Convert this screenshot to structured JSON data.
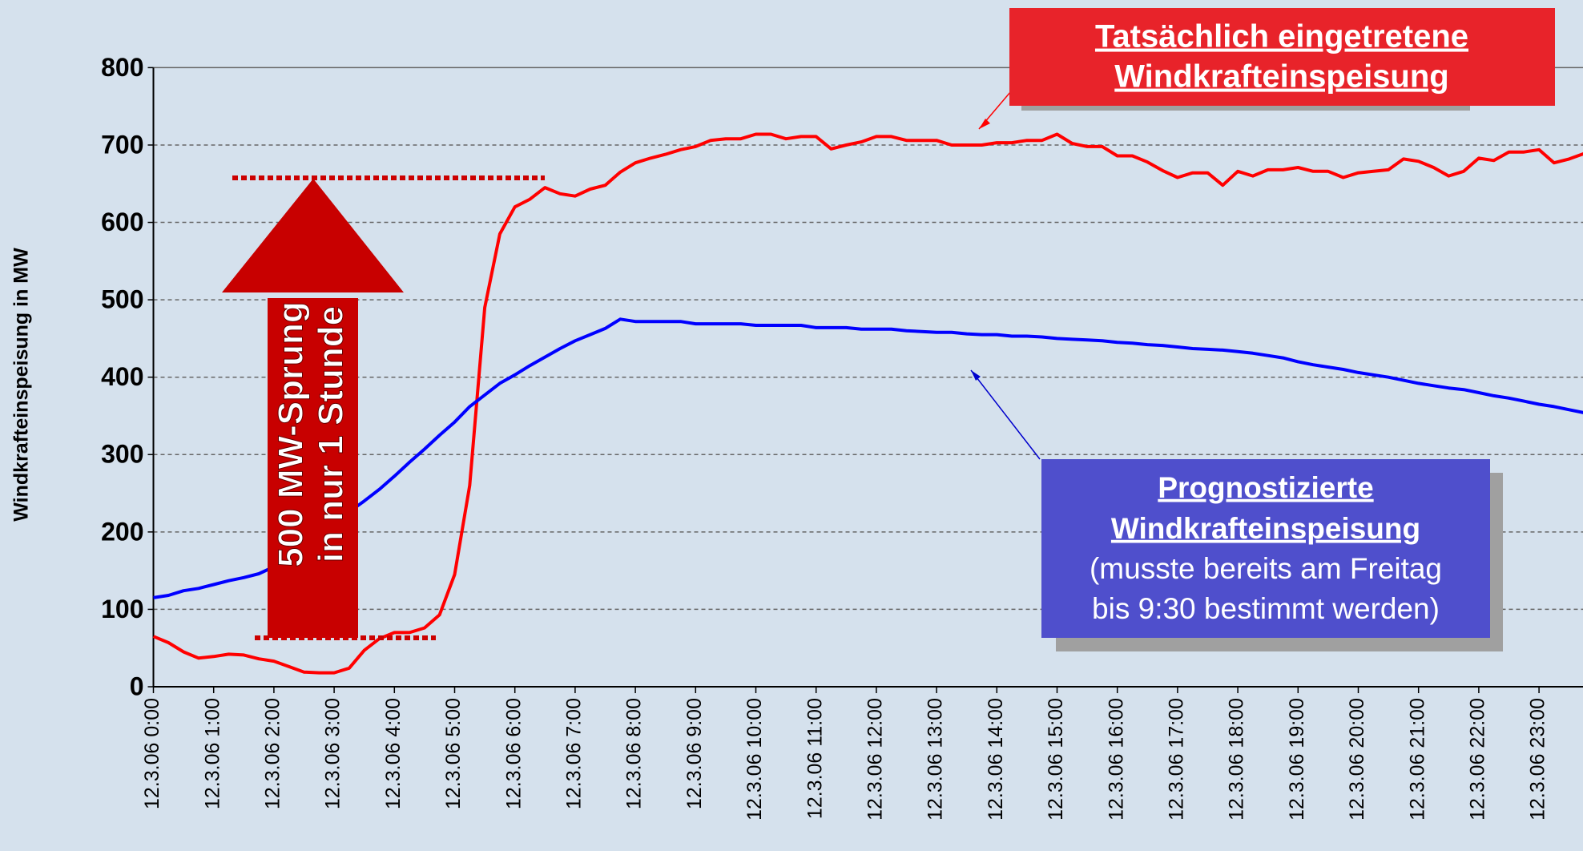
{
  "chart_data": {
    "type": "line",
    "ylabel": "Windkrafteinspeisung in MW",
    "categories": [
      "12.3.06 0:00",
      null,
      null,
      null,
      "12.3.06 1:00",
      null,
      null,
      null,
      "12.3.06 2:00",
      null,
      null,
      null,
      "12.3.06 3:00",
      null,
      null,
      null,
      "12.3.06 4:00",
      null,
      null,
      null,
      "12.3.06 5:00",
      null,
      null,
      null,
      "12.3.06 6:00",
      null,
      null,
      null,
      "12.3.06 7:00",
      null,
      null,
      null,
      "12.3.06 8:00",
      null,
      null,
      null,
      "12.3.06 9:00",
      null,
      null,
      null,
      "12.3.06 10:00",
      null,
      null,
      null,
      "12.3.06 11:00",
      null,
      null,
      null,
      "12.3.06 12:00",
      null,
      null,
      null,
      "12.3.06 13:00",
      null,
      null,
      null,
      "12.3.06 14:00",
      null,
      null,
      null,
      "12.3.06 15:00",
      null,
      null,
      null,
      "12.3.06 16:00",
      null,
      null,
      null,
      "12.3.06 17:00",
      null,
      null,
      null,
      "12.3.06 18:00",
      null,
      null,
      null,
      "12.3.06 19:00",
      null,
      null,
      null,
      "12.3.06 20:00",
      null,
      null,
      null,
      "12.3.06 21:00",
      null,
      null,
      null,
      "12.3.06 22:00",
      null,
      null,
      null,
      "12.3.06 23:00",
      null,
      null,
      null
    ],
    "series": [
      {
        "name": "Tatsächlich eingetretene Windkrafteinspeisung",
        "color": "#ff0000",
        "values": [
          65,
          57,
          45,
          37,
          39,
          42,
          41,
          36,
          33,
          26,
          19,
          18,
          18,
          24,
          47,
          62,
          70,
          70,
          76,
          93,
          145,
          260,
          490,
          585,
          620,
          630,
          645,
          637,
          634,
          643,
          648,
          665,
          677,
          683,
          688,
          694,
          698,
          706,
          708,
          708,
          714,
          714,
          708,
          711,
          711,
          695,
          700,
          704,
          711,
          711,
          706,
          706,
          706,
          700,
          700,
          700,
          703,
          703,
          706,
          706,
          714,
          702,
          698,
          698,
          686,
          686,
          678,
          667,
          658,
          664,
          664,
          648,
          666,
          660,
          668,
          668,
          671,
          666,
          666,
          658,
          664,
          666,
          668,
          682,
          679,
          671,
          660,
          666,
          683,
          680,
          691,
          691,
          694,
          677,
          682,
          689
        ]
      },
      {
        "name": "Prognostizierte Windkrafteinspeisung",
        "color": "#0000ff",
        "values": [
          115,
          118,
          124,
          127,
          132,
          137,
          141,
          146,
          155,
          170,
          185,
          200,
          213,
          226,
          240,
          255,
          272,
          290,
          307,
          325,
          342,
          362,
          377,
          392,
          403,
          415,
          426,
          437,
          447,
          455,
          463,
          475,
          472,
          472,
          472,
          472,
          469,
          469,
          469,
          469,
          467,
          467,
          467,
          467,
          464,
          464,
          464,
          462,
          462,
          462,
          460,
          459,
          458,
          458,
          456,
          455,
          455,
          453,
          453,
          452,
          450,
          449,
          448,
          447,
          445,
          444,
          442,
          441,
          439,
          437,
          436,
          435,
          433,
          431,
          428,
          425,
          420,
          416,
          413,
          410,
          406,
          403,
          400,
          396,
          392,
          389,
          386,
          384,
          380,
          376,
          373,
          369,
          365,
          362,
          358,
          354
        ]
      }
    ],
    "ylim": [
      0,
      800
    ],
    "yticks": [
      0,
      100,
      200,
      300,
      400,
      500,
      600,
      700,
      800
    ],
    "grid": true,
    "annotations": {
      "actual": [
        "Tatsächlich eingetretene",
        "Windkrafteinspeisung"
      ],
      "forecast": [
        "Prognostizierte",
        "Windkrafteinspeisung",
        "(musste bereits am Freitag",
        "bis 9:30 bestimmt werden)"
      ],
      "jump": [
        "500 MW-Sprung",
        "in nur 1 Stunde"
      ]
    }
  }
}
